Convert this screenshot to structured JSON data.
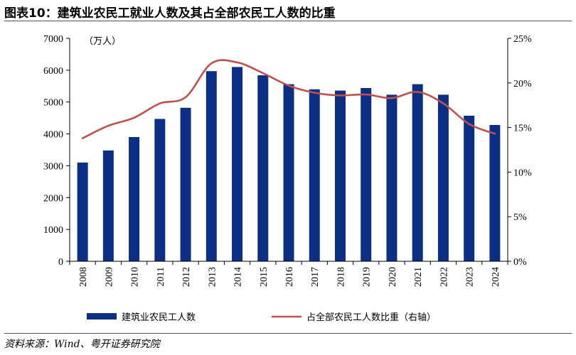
{
  "title": "图表10：建筑业农民工就业人数及其占全部农民工人数的比重",
  "source": "资料来源：Wind、粤开证券研究院",
  "colors": {
    "bar": "#0b2f84",
    "line": "#c0504d"
  },
  "chart_data": {
    "type": "bar",
    "categories": [
      "2008",
      "2009",
      "2010",
      "2011",
      "2012",
      "2013",
      "2014",
      "2015",
      "2016",
      "2017",
      "2018",
      "2019",
      "2020",
      "2021",
      "2022",
      "2023",
      "2024"
    ],
    "unit_label": "（万人）",
    "ylim": [
      0,
      7000
    ],
    "yticks": [
      "0",
      "1000",
      "2000",
      "3000",
      "4000",
      "5000",
      "6000",
      "7000"
    ],
    "y2lim": [
      0,
      25
    ],
    "y2ticks": [
      "0%",
      "5%",
      "10%",
      "15%",
      "20%",
      "25%"
    ],
    "grid": false,
    "legend_position": "bottom",
    "series": [
      {
        "name": "建筑业农民工人数",
        "type": "bar",
        "axis": "left",
        "values": [
          3100,
          3480,
          3900,
          4470,
          4820,
          5970,
          6100,
          5840,
          5560,
          5400,
          5360,
          5440,
          5230,
          5560,
          5230,
          4570,
          4280
        ]
      },
      {
        "name": "占全部农民工人数比重（右轴）",
        "type": "line",
        "axis": "right",
        "values": [
          13.8,
          15.2,
          16.1,
          17.7,
          18.4,
          22.2,
          22.3,
          21.1,
          19.7,
          18.9,
          18.6,
          18.7,
          18.3,
          19.0,
          17.7,
          15.4,
          14.3
        ]
      }
    ]
  }
}
